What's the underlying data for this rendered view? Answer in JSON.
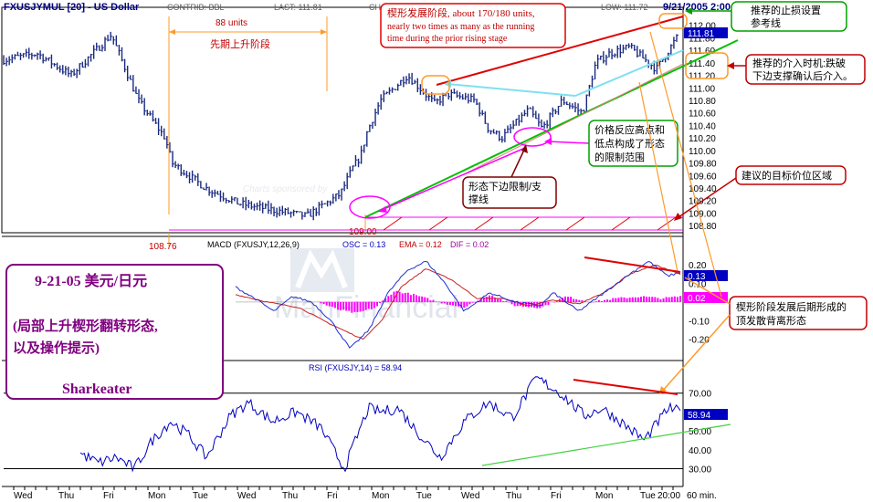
{
  "header": {
    "symbol": "FXUSJYMUL [20] - US Dollar",
    "contrib": "CONTRIB: BBL",
    "last": "LAST: 111.81",
    "ch": "CH",
    "low": "LOW: 111.72",
    "datetime": "9/21/2005 2:00"
  },
  "watermark": {
    "brand": "ManFinancial",
    "sponsor": "Charts sponsored by"
  },
  "chart_data": [
    {
      "type": "line",
      "name": "price",
      "ylim": [
        108.7,
        112.2
      ],
      "yticks": [
        112.0,
        111.8,
        111.6,
        111.4,
        111.2,
        111.0,
        110.8,
        110.6,
        110.4,
        110.2,
        110.0,
        109.8,
        109.6,
        109.4,
        109.2,
        109.0,
        108.8
      ],
      "ytick_labels": [
        "112.00",
        "111.80",
        "111.60",
        "111.40",
        "111.20",
        "111.00",
        "110.80",
        "110.60",
        "110.40",
        "110.20",
        "110.00",
        "109.80",
        "109.60",
        "109.40",
        "109.20",
        "109.00",
        "108.80"
      ],
      "last_value": 111.81,
      "last_label": "111.81",
      "anchors_x": [
        0,
        0.05,
        0.1,
        0.16,
        0.2,
        0.24,
        0.25,
        0.3,
        0.35,
        0.45,
        0.5,
        0.52,
        0.53,
        0.54,
        0.56,
        0.6,
        0.64,
        0.66,
        0.7,
        0.72,
        0.74,
        0.78,
        0.8,
        0.83,
        0.86,
        0.88,
        0.9,
        0.93,
        0.97,
        1.0
      ],
      "anchors_y": [
        111.45,
        111.55,
        111.2,
        111.85,
        110.8,
        110.2,
        109.8,
        109.4,
        109.15,
        108.95,
        109.3,
        109.75,
        109.9,
        110.3,
        110.8,
        111.2,
        110.75,
        110.9,
        110.8,
        110.35,
        110.2,
        110.65,
        110.35,
        110.8,
        110.6,
        111.4,
        111.55,
        111.65,
        111.3,
        111.8
      ],
      "noise": 0.12
    },
    {
      "type": "line",
      "name": "macd",
      "title": "MACD (FXUSJY,12,26,9)",
      "osc_label": "OSC = 0.13",
      "ema_label": "EMA = 0.12",
      "dif_label": "DIF = 0.02",
      "ylim": [
        -0.3,
        0.26
      ],
      "yticks": [
        0.2,
        0.1,
        0.0,
        -0.1,
        -0.2
      ],
      "ytick_labels": [
        "0.20",
        "0.10",
        "",
        "-0.10",
        "-0.20"
      ],
      "marker_1": "0.13",
      "marker_2": "0.02",
      "osc_anchors_x": [
        0.3,
        0.33,
        0.36,
        0.39,
        0.42,
        0.45,
        0.48,
        0.51,
        0.54,
        0.57,
        0.6,
        0.63,
        0.66,
        0.7,
        0.74,
        0.78,
        0.8,
        0.84,
        0.88,
        0.92,
        0.95,
        0.98,
        1.0
      ],
      "osc_anchors_y": [
        0.08,
        0.02,
        -0.05,
        0.03,
        0.0,
        -0.1,
        -0.25,
        -0.15,
        0.05,
        0.17,
        0.22,
        0.1,
        -0.05,
        0.05,
        0.0,
        -0.02,
        0.05,
        -0.05,
        0.05,
        0.15,
        0.22,
        0.14,
        0.16
      ],
      "sig_anchors_x": [
        0.3,
        0.35,
        0.4,
        0.45,
        0.5,
        0.53,
        0.56,
        0.6,
        0.64,
        0.68,
        0.72,
        0.76,
        0.8,
        0.84,
        0.88,
        0.92,
        0.96,
        1.0
      ],
      "sig_anchors_y": [
        0.04,
        0.0,
        -0.03,
        -0.12,
        -0.2,
        -0.1,
        0.08,
        0.18,
        0.12,
        0.02,
        0.02,
        -0.02,
        0.01,
        -0.01,
        0.05,
        0.15,
        0.2,
        0.15
      ],
      "hist_anchors_x": [
        0.43,
        0.46,
        0.49,
        0.52,
        0.55,
        0.58,
        0.62,
        0.66,
        0.7,
        0.74,
        0.78,
        0.82,
        0.86,
        0.9,
        0.94,
        0.97,
        1.0
      ],
      "hist_anchors_y": [
        0.0,
        -0.04,
        -0.06,
        -0.03,
        0.06,
        0.04,
        0.0,
        -0.03,
        0.04,
        -0.02,
        -0.03,
        0.03,
        0.0,
        0.02,
        0.03,
        0.02,
        0.03
      ]
    },
    {
      "type": "line",
      "name": "rsi",
      "title": "RSI (FXUSJY,14) = 58.94",
      "ylim": [
        22,
        80
      ],
      "yticks": [
        70,
        60,
        50,
        40,
        30
      ],
      "ytick_labels": [
        "70.00",
        "60.00",
        "50.00",
        "40.00",
        "30.00"
      ],
      "last_value": 58.94,
      "last_label": "58.94",
      "anchors_x": [
        0.0,
        0.03,
        0.06,
        0.09,
        0.12,
        0.15,
        0.18,
        0.21,
        0.25,
        0.28,
        0.32,
        0.36,
        0.4,
        0.44,
        0.48,
        0.5,
        0.53,
        0.56,
        0.6,
        0.64,
        0.68,
        0.72,
        0.76,
        0.8,
        0.84,
        0.87,
        0.9,
        0.94,
        0.98,
        1.0
      ],
      "anchors_y": [
        38,
        33,
        36,
        30,
        45,
        55,
        48,
        36,
        58,
        65,
        55,
        60,
        52,
        30,
        62,
        60,
        62,
        50,
        36,
        55,
        65,
        57,
        78,
        70,
        58,
        62,
        55,
        45,
        62,
        60
      ],
      "noise": 6
    }
  ],
  "x_axis": {
    "labels": [
      "Wed",
      "Thu",
      "Fri",
      "Mon",
      "Tue",
      "Wed",
      "Thu",
      "Fri",
      "Mon",
      "Tue",
      "Wed",
      "Thu",
      "Fri",
      "Mon",
      "Tue",
      "20:00",
      "60 min."
    ]
  },
  "annotations": {
    "units_88": "88 units",
    "prior_rise": "先期上升阶段",
    "wedge_stage_1": "楔形发展阶段,    about 170/180 units,",
    "wedge_stage_2": "nearly  two times as many as the running",
    "wedge_stage_3": "time during the prior rising stage",
    "stop_loss_1": "推荐的止损设置",
    "stop_loss_2": "参考线",
    "entry_1": "推荐的介入时机:跌破",
    "entry_2": "下边支撑确认后介入。",
    "boundary_1": "价格反应高点和",
    "boundary_2": "低点构成了形态",
    "boundary_3": "的限制范围",
    "lower_support_1": "形态下边限制/支",
    "lower_support_2": "撑线",
    "target_zone": "建议的目标价位区域",
    "divergence_1": "楔形阶段发展后期形成的",
    "divergence_2": "顶发散背离形态",
    "low_108_76": "108.76",
    "low_109_00": "109.00"
  },
  "title_box": {
    "line1": "9-21-05  美元/日元",
    "line2": "(局部上升楔形翻转形态,",
    "line3": "以及操作提示)",
    "author": "Sharkeater"
  },
  "colors": {
    "price": "#1a2a80",
    "macd_fast": "#1f2fd0",
    "macd_slow": "#cc2020",
    "hist": "#ff00ff",
    "annot_red": "#e00000",
    "annot_green": "#00a000",
    "annot_magenta": "#ff00ff",
    "annot_orange": "#ff9a2a",
    "annot_cyan": "#7fe0f0",
    "box_purple": "#800080",
    "value_box": "#0000c0"
  }
}
